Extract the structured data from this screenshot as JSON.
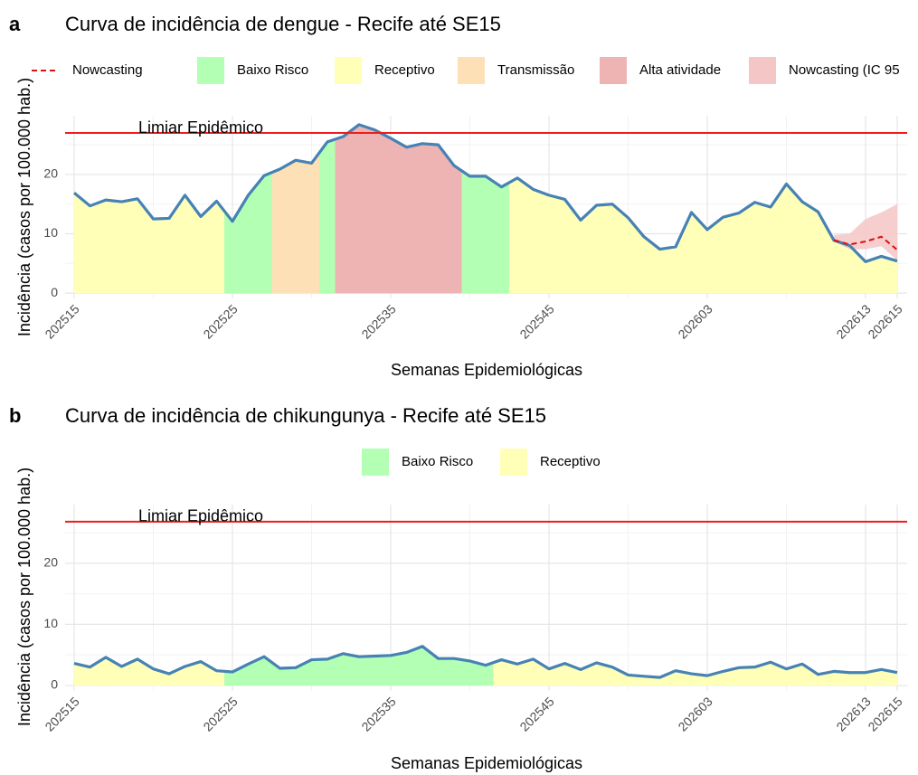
{
  "chart_data": [
    {
      "type": "area",
      "panel_label": "a",
      "title": "Curva de incidência de dengue - Recife até SE15",
      "xlabel": "Semanas Epidemiológicas",
      "ylabel": "Incidência (casos por 100.000 hab.)",
      "categories": [
        "202515",
        null,
        null,
        null,
        null,
        null,
        null,
        null,
        null,
        null,
        "202525",
        null,
        null,
        null,
        null,
        null,
        null,
        null,
        null,
        null,
        "202535",
        null,
        null,
        null,
        null,
        null,
        null,
        null,
        null,
        null,
        "202545",
        null,
        null,
        null,
        null,
        null,
        null,
        null,
        null,
        null,
        "202603",
        null,
        null,
        null,
        null,
        null,
        null,
        null,
        null,
        null,
        "202613",
        null,
        "202615"
      ],
      "values": [
        16.9,
        14.7,
        15.7,
        15.4,
        15.9,
        12.5,
        12.6,
        16.5,
        12.9,
        15.5,
        12.1,
        16.5,
        19.8,
        20.9,
        22.4,
        21.9,
        25.5,
        26.4,
        28.4,
        27.5,
        26.1,
        24.6,
        25.2,
        25.0,
        21.5,
        19.7,
        19.7,
        17.9,
        19.4,
        17.5,
        16.5,
        15.8,
        12.3,
        14.8,
        15.0,
        12.7,
        9.5,
        7.4,
        7.8,
        13.6,
        10.7,
        12.8,
        13.5,
        15.3,
        14.5,
        18.4,
        15.4,
        13.7,
        8.9,
        8.0,
        5.3,
        6.2,
        5.4
      ],
      "color": "#4682b4",
      "zones": [
        "Receptivo",
        "Receptivo",
        "Receptivo",
        "Receptivo",
        "Receptivo",
        "Receptivo",
        "Receptivo",
        "Receptivo",
        "Receptivo",
        "Receptivo",
        "Baixo Risco",
        "Baixo Risco",
        "Baixo Risco",
        "Transmissão",
        "Transmissão",
        "Transmissão",
        "Baixo Risco",
        "Alta atividade",
        "Alta atividade",
        "Alta atividade",
        "Alta atividade",
        "Alta atividade",
        "Alta atividade",
        "Alta atividade",
        "Alta atividade",
        "Baixo Risco",
        "Baixo Risco",
        "Baixo Risco",
        "Receptivo",
        "Receptivo",
        "Receptivo",
        "Receptivo",
        "Receptivo",
        "Receptivo",
        "Receptivo",
        "Receptivo",
        "Receptivo",
        "Receptivo",
        "Receptivo",
        "Receptivo",
        "Receptivo",
        "Receptivo",
        "Receptivo",
        "Receptivo",
        "Receptivo",
        "Receptivo",
        "Receptivo",
        "Receptivo",
        "Receptivo",
        "Receptivo",
        "Receptivo",
        "Receptivo",
        "Receptivo"
      ],
      "zone_legend": [
        {
          "name": "Baixo Risco",
          "color": "#b3ffb3"
        },
        {
          "name": "Receptivo",
          "color": "#ffffb8"
        },
        {
          "name": "Transmissão",
          "color": "#fde0b5"
        },
        {
          "name": "Alta atividade",
          "color": "#eeb4b4"
        }
      ],
      "nowcast": {
        "name": "Nowcasting",
        "color": "#dd1111",
        "values": [
          null,
          null,
          null,
          null,
          null,
          null,
          null,
          null,
          null,
          null,
          null,
          null,
          null,
          null,
          null,
          null,
          null,
          null,
          null,
          null,
          null,
          null,
          null,
          null,
          null,
          null,
          null,
          null,
          null,
          null,
          null,
          null,
          null,
          null,
          null,
          null,
          null,
          null,
          null,
          null,
          null,
          null,
          null,
          null,
          null,
          null,
          null,
          null,
          8.9,
          8.2,
          8.7,
          9.5,
          7.3
        ]
      },
      "nowcast_interval": {
        "name": "Nowcasting (IC 95",
        "color": "#f4c6c6",
        "lower": [
          null,
          null,
          null,
          null,
          null,
          null,
          null,
          null,
          null,
          null,
          null,
          null,
          null,
          null,
          null,
          null,
          null,
          null,
          null,
          null,
          null,
          null,
          null,
          null,
          null,
          null,
          null,
          null,
          null,
          null,
          null,
          null,
          null,
          null,
          null,
          null,
          null,
          null,
          null,
          null,
          null,
          null,
          null,
          null,
          null,
          null,
          null,
          null,
          8.7,
          7.4,
          7.4,
          7.9,
          5.5
        ],
        "upper": [
          null,
          null,
          null,
          null,
          null,
          null,
          null,
          null,
          null,
          null,
          null,
          null,
          null,
          null,
          null,
          null,
          null,
          null,
          null,
          null,
          null,
          null,
          null,
          null,
          null,
          null,
          null,
          null,
          null,
          null,
          null,
          null,
          null,
          null,
          null,
          null,
          null,
          null,
          null,
          null,
          null,
          null,
          null,
          null,
          null,
          null,
          null,
          null,
          9.8,
          10.0,
          12.5,
          13.6,
          15.0
        ]
      },
      "threshold": {
        "label": "Limiar Epidêmico",
        "value": 27.0,
        "color": "#ee1c1c"
      },
      "ylim": [
        -0.9,
        29.9
      ],
      "yticks": [
        0,
        10,
        20
      ],
      "grid": true
    },
    {
      "type": "area",
      "panel_label": "b",
      "title": "Curva de incidência de chikungunya - Recife até SE15",
      "xlabel": "Semanas Epidemiológicas",
      "ylabel": "Incidência (casos por 100.000 hab.)",
      "categories": [
        "202515",
        null,
        null,
        null,
        null,
        null,
        null,
        null,
        null,
        null,
        "202525",
        null,
        null,
        null,
        null,
        null,
        null,
        null,
        null,
        null,
        "202535",
        null,
        null,
        null,
        null,
        null,
        null,
        null,
        null,
        null,
        "202545",
        null,
        null,
        null,
        null,
        null,
        null,
        null,
        null,
        null,
        "202603",
        null,
        null,
        null,
        null,
        null,
        null,
        null,
        null,
        null,
        "202613",
        null,
        "202615"
      ],
      "values": [
        3.6,
        3.0,
        4.6,
        3.1,
        4.3,
        2.7,
        1.9,
        3.1,
        3.9,
        2.4,
        2.2,
        3.5,
        4.7,
        2.8,
        2.9,
        4.2,
        4.3,
        5.2,
        4.7,
        4.8,
        4.9,
        5.4,
        6.4,
        4.4,
        4.4,
        4.0,
        3.3,
        4.2,
        3.5,
        4.3,
        2.7,
        3.6,
        2.6,
        3.7,
        3.0,
        1.7,
        1.5,
        1.3,
        2.4,
        1.9,
        1.6,
        2.3,
        2.9,
        3.0,
        3.8,
        2.7,
        3.5,
        1.8,
        2.3,
        2.1,
        2.1,
        2.6,
        2.1
      ],
      "color": "#4682b4",
      "zones": [
        "Receptivo",
        "Receptivo",
        "Receptivo",
        "Receptivo",
        "Receptivo",
        "Receptivo",
        "Receptivo",
        "Receptivo",
        "Receptivo",
        "Receptivo",
        "Baixo Risco",
        "Baixo Risco",
        "Baixo Risco",
        "Baixo Risco",
        "Baixo Risco",
        "Baixo Risco",
        "Baixo Risco",
        "Baixo Risco",
        "Baixo Risco",
        "Baixo Risco",
        "Baixo Risco",
        "Baixo Risco",
        "Baixo Risco",
        "Baixo Risco",
        "Baixo Risco",
        "Baixo Risco",
        "Baixo Risco",
        "Receptivo",
        "Receptivo",
        "Receptivo",
        "Receptivo",
        "Receptivo",
        "Receptivo",
        "Receptivo",
        "Receptivo",
        "Receptivo",
        "Receptivo",
        "Receptivo",
        "Receptivo",
        "Receptivo",
        "Receptivo",
        "Receptivo",
        "Receptivo",
        "Receptivo",
        "Receptivo",
        "Receptivo",
        "Receptivo",
        "Receptivo",
        "Receptivo",
        "Receptivo",
        "Receptivo",
        "Receptivo",
        "Receptivo"
      ],
      "zone_legend": [
        {
          "name": "Baixo Risco",
          "color": "#b3ffb3"
        },
        {
          "name": "Receptivo",
          "color": "#ffffb8"
        }
      ],
      "threshold": {
        "label": "Limiar Epidêmico",
        "value": 26.8,
        "color": "#ee1c1c"
      },
      "ylim": [
        -0.9,
        29.6
      ],
      "yticks": [
        0,
        10,
        20
      ],
      "grid": true
    }
  ]
}
